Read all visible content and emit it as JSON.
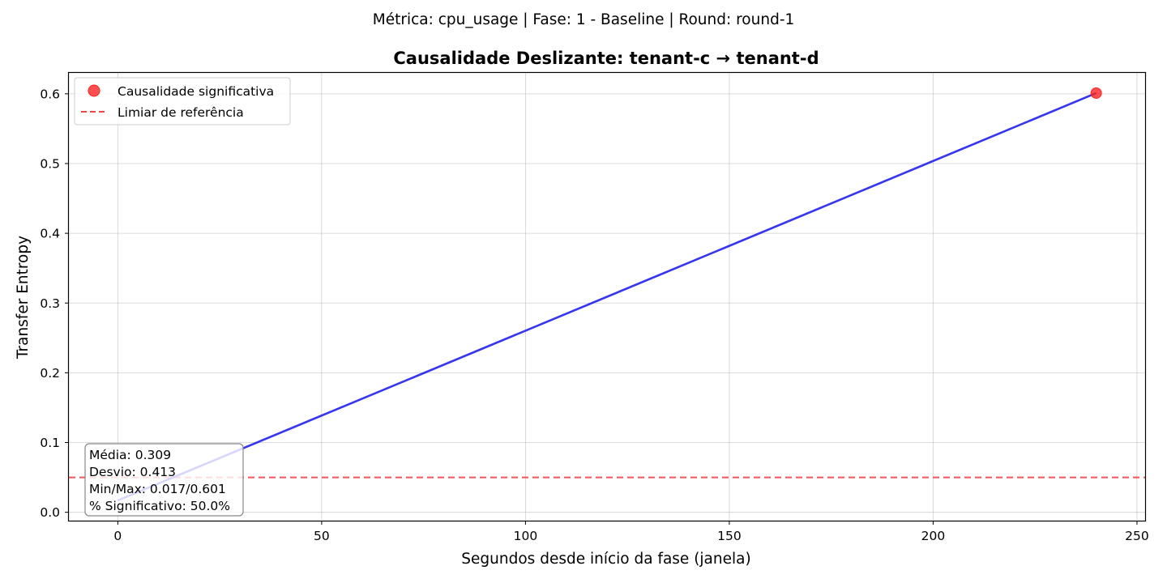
{
  "chart_data": {
    "type": "line",
    "suptitle": "Métrica: cpu_usage | Fase: 1 - Baseline | Round: round-1",
    "title": "Causalidade Deslizante: tenant-c → tenant-d",
    "xlabel": "Segundos desde início da fase (janela)",
    "ylabel": "Transfer Entropy",
    "xlim": [
      -12,
      252
    ],
    "ylim": [
      -0.012,
      0.63
    ],
    "xticks": [
      0,
      50,
      100,
      150,
      200,
      250
    ],
    "yticks": [
      0.0,
      0.1,
      0.2,
      0.3,
      0.4,
      0.5,
      0.6
    ],
    "grid": true,
    "legend_placement": "upper-left",
    "series": [
      {
        "name": "",
        "kind": "line",
        "color": "#1a1aee",
        "x": [
          0,
          240
        ],
        "y": [
          0.017,
          0.601
        ]
      }
    ],
    "significant_points": {
      "name": "Causalidade significativa",
      "color": "#ff2222",
      "x": [
        240
      ],
      "y": [
        0.601
      ]
    },
    "reference_line": {
      "name": "Limiar de referência",
      "color": "#ee4444",
      "y": 0.05
    },
    "stats_box": [
      "Média: 0.309",
      "Desvio: 0.413",
      "Min/Max: 0.017/0.601",
      "% Significativo: 50.0%"
    ]
  }
}
